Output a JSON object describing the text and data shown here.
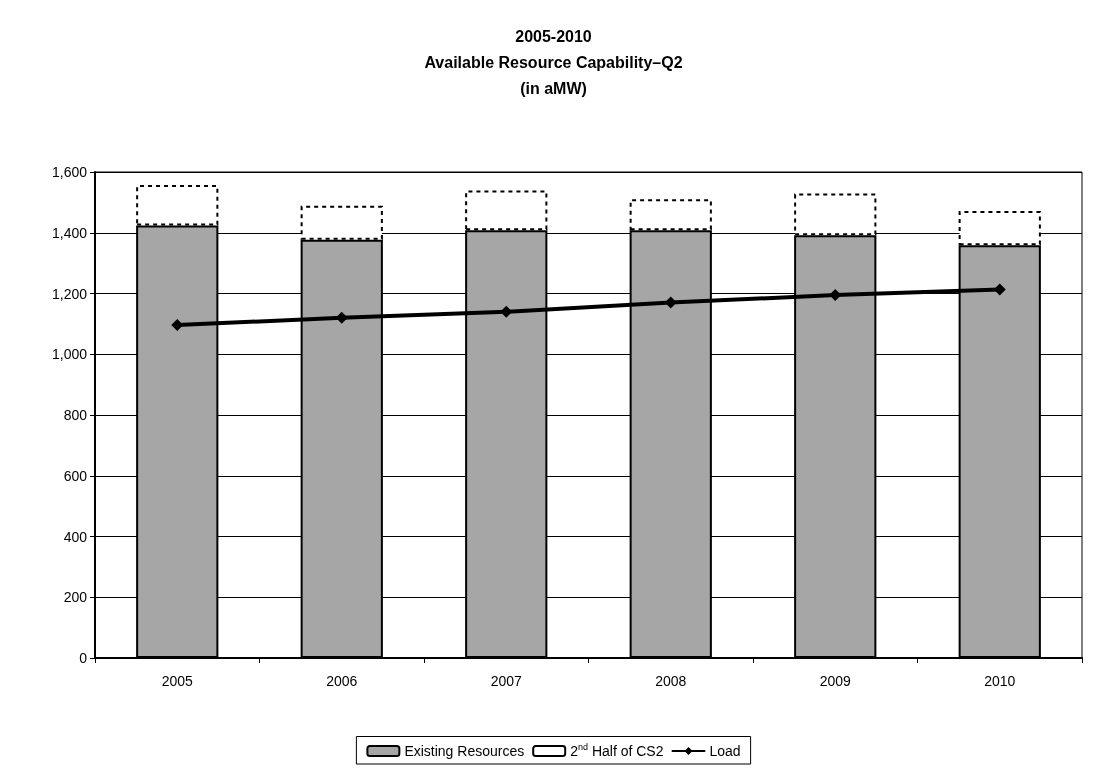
{
  "chart_data": {
    "type": "bar",
    "title": "2005-2010\nAvailable Resource Capability–Q2\n(in aMW)",
    "categories": [
      "2005",
      "2006",
      "2007",
      "2008",
      "2009",
      "2010"
    ],
    "stacked": true,
    "series": [
      {
        "name": "Existing Resources",
        "color": "#a6a6a6",
        "values": [
          1424,
          1377,
          1408,
          1408,
          1392,
          1359
        ]
      },
      {
        "name": "2$^{nd}$ Half of CS2",
        "color": "#ffffff",
        "line_style": "dashed",
        "values": [
          133,
          112,
          131,
          102,
          137,
          113
        ]
      },
      {
        "name": "Load",
        "type": "line",
        "color": "#000000",
        "marker": "diamond",
        "line_style": "solid",
        "values": [
          1096,
          1120,
          1140,
          1170,
          1195,
          1213
        ]
      }
    ],
    "ylim": [
      0,
      1600
    ],
    "yticks": [
      0,
      200,
      400,
      600,
      800,
      {
        "value": 1000,
        "label": "1,000"
      },
      {
        "value": 1200,
        "label": "1,200"
      },
      {
        "value": 1400,
        "label": "1,400"
      },
      {
        "value": 1600,
        "label": "1,600"
      }
    ],
    "grid": "y",
    "legend": "bottom"
  }
}
